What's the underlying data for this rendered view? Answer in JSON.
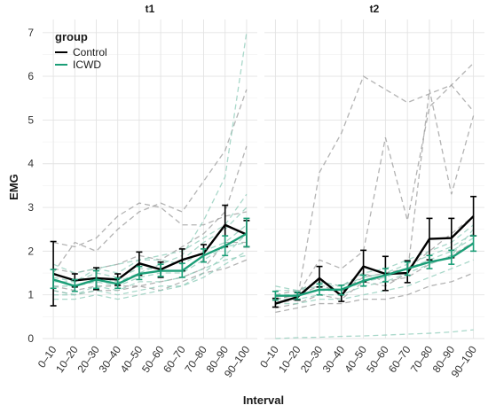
{
  "chart_data": {
    "type": "line",
    "facets": [
      "t1",
      "t2"
    ],
    "categories": [
      "0–10",
      "10–20",
      "20–30",
      "30–40",
      "40–50",
      "50–60",
      "60–70",
      "70–80",
      "80–90",
      "90–100"
    ],
    "xlabel": "Interval",
    "ylabel": "EMG",
    "ylim": [
      0,
      7.3
    ],
    "yticks": [
      0,
      1,
      2,
      3,
      4,
      5,
      6,
      7
    ],
    "grid": true,
    "legend": {
      "title": "group",
      "placement": "top-left",
      "entries": [
        "Control",
        "ICWD"
      ]
    },
    "colors": {
      "Control": "#000000",
      "ICWD": "#1b9e77",
      "individual_control": "#9a9a9a",
      "individual_icwd": "#8ccbb8"
    },
    "series": [
      {
        "name": "Control",
        "facet": "t1",
        "values": [
          1.48,
          1.33,
          1.38,
          1.35,
          1.72,
          1.58,
          1.8,
          1.95,
          2.6,
          2.38
        ],
        "error_low": [
          0.75,
          1.18,
          1.12,
          1.22,
          1.45,
          1.4,
          1.55,
          1.75,
          2.1,
          2.1
        ],
        "error_high": [
          2.22,
          1.48,
          1.62,
          1.48,
          1.98,
          1.75,
          2.05,
          2.15,
          3.05,
          2.7
        ]
      },
      {
        "name": "ICWD",
        "facet": "t1",
        "values": [
          1.35,
          1.2,
          1.35,
          1.25,
          1.48,
          1.55,
          1.55,
          1.9,
          2.12,
          2.4
        ],
        "error_low": [
          1.15,
          1.08,
          1.15,
          1.15,
          1.35,
          1.42,
          1.4,
          1.75,
          1.9,
          2.1
        ],
        "error_high": [
          1.58,
          1.35,
          1.55,
          1.38,
          1.65,
          1.7,
          1.72,
          2.05,
          2.35,
          2.75
        ]
      },
      {
        "name": "Control",
        "facet": "t2",
        "values": [
          0.8,
          0.95,
          1.38,
          0.98,
          1.65,
          1.48,
          1.5,
          2.28,
          2.3,
          2.8
        ],
        "error_low": [
          0.72,
          0.88,
          1.18,
          0.85,
          1.3,
          1.1,
          1.28,
          1.8,
          1.85,
          2.35
        ],
        "error_high": [
          0.92,
          1.05,
          1.65,
          1.12,
          2.02,
          1.88,
          1.78,
          2.75,
          2.75,
          3.25
        ]
      },
      {
        "name": "ICWD",
        "facet": "t2",
        "values": [
          0.98,
          0.98,
          1.12,
          1.12,
          1.32,
          1.45,
          1.6,
          1.75,
          1.85,
          2.18
        ],
        "error_low": [
          0.88,
          0.9,
          1.0,
          1.0,
          1.2,
          1.3,
          1.45,
          1.6,
          1.7,
          2.0
        ],
        "error_high": [
          1.08,
          1.06,
          1.25,
          1.22,
          1.45,
          1.6,
          1.75,
          1.9,
          2.02,
          2.35
        ]
      }
    ],
    "individual_series": {
      "t1": [
        {
          "group": "Control",
          "values": [
            1.5,
            2.2,
            2.0,
            2.5,
            2.9,
            3.1,
            2.9,
            3.6,
            4.3,
            5.7
          ]
        },
        {
          "group": "Control",
          "values": [
            2.2,
            2.1,
            2.3,
            2.8,
            3.1,
            3.0,
            2.6,
            2.6,
            2.8,
            2.9
          ]
        },
        {
          "group": "Control",
          "values": [
            1.1,
            1.0,
            1.1,
            1.1,
            1.2,
            1.1,
            1.3,
            1.5,
            1.6,
            1.8
          ]
        },
        {
          "group": "Control",
          "values": [
            1.2,
            1.1,
            1.2,
            1.2,
            1.2,
            1.3,
            1.4,
            1.6,
            2.2,
            2.2
          ]
        },
        {
          "group": "Control",
          "values": [
            1.6,
            1.5,
            1.6,
            1.7,
            1.9,
            1.8,
            2.1,
            2.4,
            2.9,
            4.4
          ]
        },
        {
          "group": "ICWD",
          "values": [
            1.3,
            1.3,
            1.4,
            1.3,
            1.5,
            1.7,
            1.9,
            2.7,
            3.7,
            7.0
          ]
        },
        {
          "group": "ICWD",
          "values": [
            1.4,
            1.3,
            1.5,
            1.4,
            1.6,
            1.6,
            1.8,
            2.2,
            2.5,
            3.0
          ]
        },
        {
          "group": "ICWD",
          "values": [
            1.0,
            1.0,
            1.1,
            1.0,
            1.1,
            1.2,
            1.2,
            1.4,
            1.7,
            2.0
          ]
        },
        {
          "group": "ICWD",
          "values": [
            1.5,
            1.3,
            1.6,
            1.7,
            1.8,
            1.9,
            2.0,
            2.3,
            2.6,
            3.3
          ]
        },
        {
          "group": "ICWD",
          "values": [
            0.9,
            0.9,
            1.0,
            0.9,
            1.0,
            1.1,
            1.2,
            1.5,
            1.9,
            2.4
          ]
        },
        {
          "group": "ICWD",
          "values": [
            1.7,
            1.5,
            1.6,
            1.5,
            1.8,
            1.8,
            1.7,
            2.0,
            2.2,
            2.6
          ]
        },
        {
          "group": "ICWD",
          "values": [
            1.2,
            1.2,
            1.3,
            1.2,
            1.4,
            1.5,
            1.5,
            1.8,
            2.1,
            2.2
          ]
        },
        {
          "group": "ICWD",
          "values": [
            1.1,
            1.0,
            1.2,
            1.1,
            1.3,
            1.3,
            1.4,
            1.6,
            1.8,
            1.9
          ]
        }
      ],
      "t2": [
        {
          "group": "Control",
          "values": [
            0.8,
            0.9,
            3.8,
            4.7,
            6.0,
            5.7,
            5.4,
            5.6,
            5.8,
            5.2
          ]
        },
        {
          "group": "Control",
          "values": [
            0.9,
            1.0,
            1.8,
            1.6,
            2.0,
            4.6,
            2.7,
            5.3,
            5.8,
            6.3
          ]
        },
        {
          "group": "Control",
          "values": [
            0.7,
            0.8,
            1.0,
            0.9,
            1.3,
            1.2,
            1.5,
            5.7,
            3.3,
            5.1
          ]
        },
        {
          "group": "Control",
          "values": [
            0.9,
            1.0,
            1.2,
            1.1,
            1.4,
            1.5,
            1.6,
            2.0,
            2.4,
            2.8
          ]
        },
        {
          "group": "Control",
          "values": [
            1.0,
            1.1,
            1.3,
            1.2,
            1.5,
            1.3,
            1.4,
            1.7,
            1.9,
            2.2
          ]
        },
        {
          "group": "Control",
          "values": [
            0.6,
            0.7,
            0.8,
            0.8,
            0.9,
            0.9,
            1.0,
            1.2,
            1.3,
            1.5
          ]
        },
        {
          "group": "ICWD",
          "values": [
            1.0,
            1.0,
            1.1,
            1.1,
            1.3,
            1.4,
            1.6,
            1.8,
            2.0,
            2.3
          ]
        },
        {
          "group": "ICWD",
          "values": [
            0.9,
            0.9,
            1.0,
            1.0,
            1.2,
            1.3,
            1.5,
            1.7,
            1.9,
            2.5
          ]
        },
        {
          "group": "ICWD",
          "values": [
            1.2,
            1.1,
            1.3,
            1.2,
            1.5,
            1.6,
            1.8,
            2.0,
            2.2,
            2.6
          ]
        },
        {
          "group": "ICWD",
          "values": [
            0.8,
            0.8,
            0.9,
            0.9,
            1.0,
            1.1,
            1.2,
            1.4,
            1.6,
            1.8
          ]
        },
        {
          "group": "ICWD",
          "values": [
            1.1,
            1.1,
            1.2,
            1.2,
            1.4,
            1.5,
            1.7,
            1.9,
            2.1,
            2.4
          ]
        },
        {
          "group": "ICWD",
          "values": [
            0.0,
            0.02,
            0.03,
            0.05,
            0.06,
            0.08,
            0.1,
            0.12,
            0.15,
            0.2
          ]
        }
      ]
    }
  }
}
